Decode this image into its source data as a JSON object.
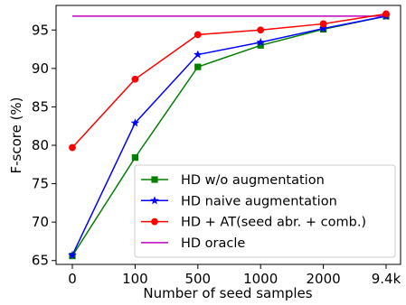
{
  "chart_data": {
    "type": "line",
    "title": "",
    "xlabel": "Number of seed samples",
    "ylabel": "F-score (%)",
    "categories": [
      "0",
      "100",
      "500",
      "1000",
      "2000",
      "9.4k"
    ],
    "ylim": [
      64.5,
      98.2
    ],
    "yticks": [
      65,
      70,
      75,
      80,
      85,
      90,
      95
    ],
    "grid": false,
    "legend_position": "lower-right",
    "series": [
      {
        "name": "HD w/o augmentation",
        "color": "#008000",
        "marker": "square",
        "values": [
          65.6,
          78.4,
          90.2,
          93.0,
          95.1,
          96.8
        ]
      },
      {
        "name": "HD naive augmentation",
        "color": "#0000ff",
        "marker": "star",
        "values": [
          65.7,
          82.9,
          91.8,
          93.4,
          95.2,
          96.8
        ]
      },
      {
        "name": "HD + AT(seed abr. + comb.)",
        "color": "#ff0000",
        "marker": "circle",
        "values": [
          79.7,
          88.6,
          94.4,
          95.0,
          95.8,
          97.1
        ]
      },
      {
        "name": "HD oracle",
        "color": "#bf00bf",
        "marker": "none",
        "values": [
          96.8,
          96.8,
          96.8,
          96.8,
          96.8,
          96.8
        ]
      }
    ]
  }
}
